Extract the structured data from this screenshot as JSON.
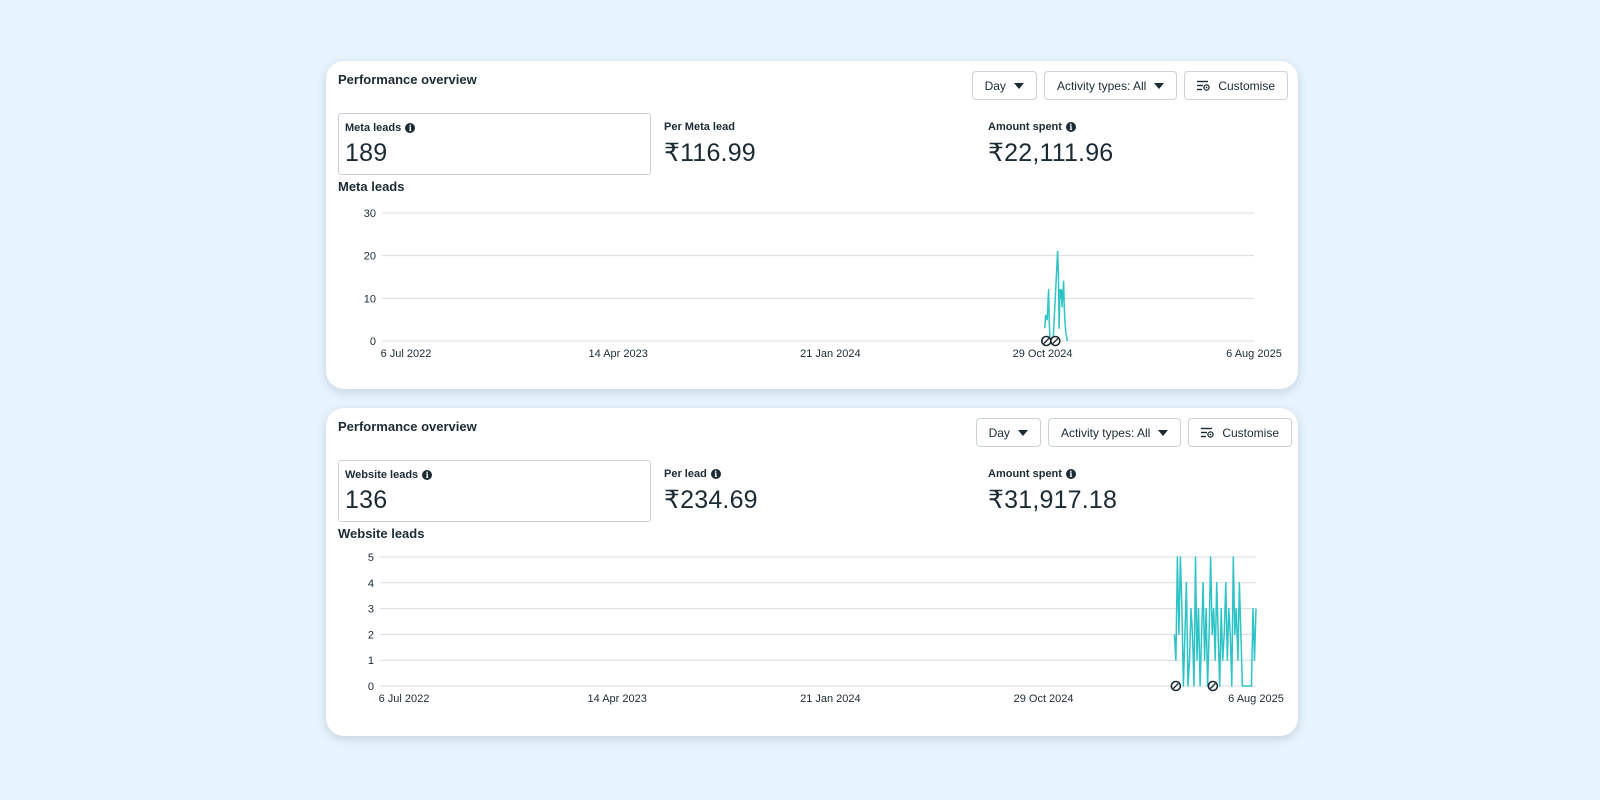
{
  "panels": [
    {
      "title": "Performance overview",
      "controls": {
        "period": "Day",
        "activity": "Activity types: All",
        "customise": "Customise"
      },
      "metrics": [
        {
          "label": "Meta leads",
          "value": "189",
          "info": true
        },
        {
          "label": "Per Meta lead",
          "value": "₹116.99",
          "info": false
        },
        {
          "label": "Amount spent",
          "value": "₹22,111.96",
          "info": true
        }
      ],
      "chart_title": "Meta leads"
    },
    {
      "title": "Performance overview",
      "controls": {
        "period": "Day",
        "activity": "Activity types: All",
        "customise": "Customise"
      },
      "metrics": [
        {
          "label": "Website leads",
          "value": "136",
          "info": true
        },
        {
          "label": "Per lead",
          "value": "₹234.69",
          "info": true
        },
        {
          "label": "Amount spent",
          "value": "₹31,917.18",
          "info": true
        }
      ],
      "chart_title": "Website leads"
    }
  ],
  "chart_data": [
    {
      "type": "line",
      "ylabel": "",
      "xlabel": "",
      "ylim": [
        0,
        30
      ],
      "yticks": [
        0,
        10,
        20,
        30
      ],
      "xticks": [
        "6 Jul 2022",
        "14 Apr 2023",
        "21 Jan 2024",
        "29 Oct 2024",
        "6 Aug 2025"
      ],
      "color": "#2ec4c7",
      "grid": true,
      "series": [
        {
          "x": [
            "2024-11-01",
            "2024-11-02",
            "2024-11-04",
            "2024-11-05",
            "2024-11-06",
            "2024-11-07",
            "2024-11-08",
            "2024-11-09",
            "2024-11-10",
            "2024-11-11",
            "2024-11-12",
            "2024-11-18",
            "2024-11-19",
            "2024-11-20",
            "2024-11-21",
            "2024-11-22",
            "2024-11-23",
            "2024-11-24",
            "2024-11-25",
            "2024-11-26",
            "2024-11-27",
            "2024-11-28",
            "2024-11-29",
            "2024-11-30",
            "2024-12-01"
          ],
          "y": [
            3,
            6,
            5,
            8,
            12,
            4,
            0,
            0,
            0,
            0,
            0,
            21,
            16,
            3,
            12,
            10,
            12,
            8,
            11,
            14,
            7,
            4,
            2,
            1,
            0
          ]
        }
      ],
      "markers": [
        "2024-11-03",
        "2024-11-15"
      ]
    },
    {
      "type": "line",
      "ylabel": "",
      "xlabel": "",
      "ylim": [
        0,
        5
      ],
      "yticks": [
        0,
        1,
        2,
        3,
        4,
        5
      ],
      "xticks": [
        "6 Jul 2022",
        "14 Apr 2023",
        "21 Jan 2024",
        "29 Oct 2024",
        "6 Aug 2025"
      ],
      "color": "#2ec4c7",
      "grid": true,
      "series": [
        {
          "x": [
            "2025-04-20",
            "2025-04-22",
            "2025-04-24",
            "2025-04-26",
            "2025-04-28",
            "2025-04-30",
            "2025-05-02",
            "2025-05-04",
            "2025-05-06",
            "2025-05-08",
            "2025-05-10",
            "2025-05-12",
            "2025-05-14",
            "2025-05-16",
            "2025-05-18",
            "2025-05-20",
            "2025-05-22",
            "2025-05-24",
            "2025-05-26",
            "2025-05-28",
            "2025-05-30",
            "2025-06-01",
            "2025-06-03",
            "2025-06-05",
            "2025-06-07",
            "2025-06-09",
            "2025-06-11",
            "2025-06-13",
            "2025-06-15",
            "2025-06-17",
            "2025-06-19",
            "2025-06-21",
            "2025-06-23",
            "2025-06-25",
            "2025-06-27",
            "2025-06-29",
            "2025-07-01",
            "2025-07-03",
            "2025-07-05",
            "2025-07-07",
            "2025-07-09",
            "2025-07-11",
            "2025-07-13",
            "2025-07-15",
            "2025-07-17",
            "2025-07-19",
            "2025-07-21",
            "2025-07-23",
            "2025-07-25",
            "2025-07-27",
            "2025-07-29",
            "2025-07-31",
            "2025-08-02",
            "2025-08-04",
            "2025-08-06"
          ],
          "y": [
            2,
            1,
            5,
            2,
            5,
            3,
            0,
            2,
            4,
            0,
            1,
            3,
            2,
            0,
            5,
            1,
            3,
            0,
            2,
            4,
            1,
            3,
            0,
            2,
            5,
            2,
            3,
            1,
            4,
            2,
            0,
            3,
            1,
            2,
            4,
            1,
            3,
            2,
            0,
            5,
            2,
            3,
            1,
            4,
            2,
            0,
            0,
            0,
            0,
            0,
            0,
            0,
            3,
            1,
            3
          ]
        }
      ],
      "markers": [
        "2025-04-22",
        "2025-06-10"
      ]
    }
  ]
}
